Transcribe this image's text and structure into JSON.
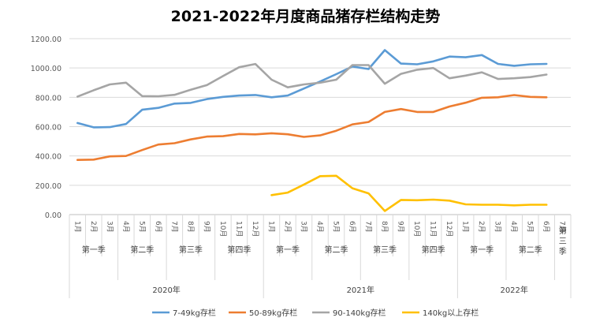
{
  "chart_data": {
    "type": "line",
    "title": "2021-2022年月度商品猪存栏结构走势",
    "ylim": [
      0,
      1200
    ],
    "yticks": [
      "0.00",
      "200.00",
      "400.00",
      "600.00",
      "800.00",
      "1000.00",
      "1200.00"
    ],
    "grid": true,
    "legend_position": "bottom",
    "categories": [
      "1月",
      "2月",
      "3月",
      "4月",
      "5月",
      "6月",
      "7月",
      "8月",
      "9月",
      "10月",
      "11月",
      "12月",
      "1月",
      "2月",
      "3月",
      "4月",
      "5月",
      "6月",
      "7月",
      "8月",
      "9月",
      "10月",
      "11月",
      "12月",
      "1月",
      "2月",
      "3月",
      "4月",
      "5月",
      "6月",
      "7月"
    ],
    "quarter_labels": [
      {
        "label": "第一季"
      },
      {
        "label": "第二季"
      },
      {
        "label": "第三季"
      },
      {
        "label": "第四季"
      },
      {
        "label": "第一季"
      },
      {
        "label": "第二季"
      },
      {
        "label": "第三季"
      },
      {
        "label": "第四季"
      },
      {
        "label": "第一季"
      },
      {
        "label": "第二季"
      },
      {
        "label": "第三季"
      }
    ],
    "year_labels": [
      {
        "label": "2020年"
      },
      {
        "label": "2021年"
      },
      {
        "label": "2022年"
      }
    ],
    "series": [
      {
        "name": "7-49kg存栏",
        "color": "#5B9BD5",
        "values": [
          625,
          595,
          597,
          618,
          715,
          728,
          757,
          762,
          788,
          803,
          812,
          816,
          800,
          812,
          860,
          908,
          958,
          1010,
          993,
          1122,
          1030,
          1025,
          1045,
          1078,
          1073,
          1088,
          1028,
          1015,
          1025,
          1028,
          null
        ]
      },
      {
        "name": "50-89kg存栏",
        "color": "#ED7D31",
        "values": [
          373,
          375,
          397,
          400,
          440,
          478,
          487,
          513,
          532,
          535,
          550,
          547,
          555,
          548,
          530,
          540,
          572,
          615,
          632,
          700,
          720,
          700,
          700,
          737,
          763,
          797,
          800,
          815,
          803,
          800,
          null
        ]
      },
      {
        "name": "90-140kg存栏",
        "color": "#A5A5A5",
        "values": [
          805,
          848,
          888,
          900,
          808,
          807,
          817,
          852,
          883,
          945,
          1005,
          1027,
          920,
          868,
          888,
          900,
          920,
          1020,
          1020,
          893,
          960,
          988,
          1000,
          930,
          948,
          970,
          925,
          930,
          938,
          955,
          null
        ]
      },
      {
        "name": "140kg以上存栏",
        "color": "#FFC000",
        "values": [
          null,
          null,
          null,
          null,
          null,
          null,
          null,
          null,
          null,
          null,
          null,
          null,
          133,
          150,
          205,
          262,
          265,
          180,
          145,
          25,
          100,
          98,
          102,
          95,
          70,
          67,
          67,
          63,
          67,
          67,
          null
        ]
      }
    ]
  }
}
